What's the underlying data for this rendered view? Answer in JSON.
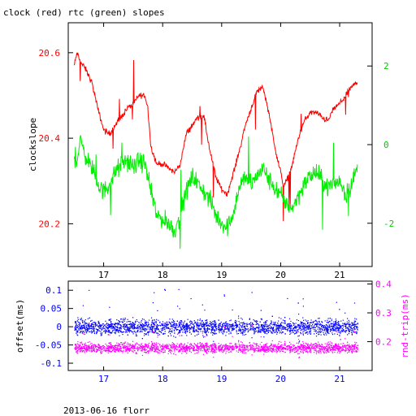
{
  "page": {
    "title": "clock (red) rtc (green) slopes",
    "footer": "2013-06-16 florr"
  },
  "chart_data": [
    {
      "type": "line",
      "title": "clock (red) rtc (green) slopes",
      "xlabel": "",
      "ylabel": "clockslope",
      "xlim": [
        16.4,
        21.55
      ],
      "ylim": [
        20.1,
        20.67
      ],
      "y2lim": [
        -3.1,
        3.1
      ],
      "x_ticks": [
        17,
        18,
        19,
        20,
        21
      ],
      "x_tick_labels": [
        "17",
        "18",
        "19",
        "20",
        "21"
      ],
      "y_ticks": [
        20.2,
        20.4,
        20.6
      ],
      "y_tick_labels": [
        "20.2",
        "20.4",
        "20.6"
      ],
      "y2_ticks": [
        -2,
        0,
        2
      ],
      "y2_tick_labels": [
        "-2",
        "0",
        "2"
      ],
      "colors": {
        "clock": "#ff0000",
        "rtc": "#00ee00",
        "axis": "#000000"
      },
      "series": [
        {
          "key": "clock",
          "axis": "left",
          "x": [
            16.5,
            16.55,
            16.6,
            16.7,
            16.8,
            16.9,
            17.0,
            17.1,
            17.2,
            17.3,
            17.4,
            17.5,
            17.6,
            17.7,
            17.75,
            17.8,
            17.9,
            18.0,
            18.1,
            18.2,
            18.3,
            18.4,
            18.5,
            18.6,
            18.7,
            18.8,
            18.9,
            19.0,
            19.1,
            19.2,
            19.3,
            19.4,
            19.5,
            19.6,
            19.7,
            19.8,
            19.9,
            20.0,
            20.05,
            20.1,
            20.2,
            20.3,
            20.4,
            20.5,
            20.6,
            20.7,
            20.8,
            20.9,
            21.0,
            21.1,
            21.2,
            21.3
          ],
          "y": [
            20.57,
            20.6,
            20.58,
            20.56,
            20.53,
            20.47,
            20.42,
            20.41,
            20.43,
            20.45,
            20.47,
            20.48,
            20.5,
            20.5,
            20.47,
            20.38,
            20.34,
            20.34,
            20.33,
            20.32,
            20.34,
            20.41,
            20.43,
            20.45,
            20.45,
            20.37,
            20.31,
            20.28,
            20.27,
            20.32,
            20.37,
            20.43,
            20.47,
            20.51,
            20.52,
            20.46,
            20.38,
            20.32,
            20.29,
            20.3,
            20.34,
            20.4,
            20.44,
            20.46,
            20.46,
            20.45,
            20.44,
            20.47,
            20.48,
            20.5,
            20.52,
            20.53
          ]
        },
        {
          "key": "rtc",
          "axis": "right",
          "x": [
            16.5,
            16.55,
            16.6,
            16.7,
            16.8,
            16.9,
            17.0,
            17.1,
            17.2,
            17.3,
            17.4,
            17.5,
            17.6,
            17.7,
            17.8,
            17.9,
            18.0,
            18.1,
            18.2,
            18.3,
            18.4,
            18.5,
            18.6,
            18.7,
            18.8,
            18.9,
            19.0,
            19.1,
            19.2,
            19.3,
            19.4,
            19.5,
            19.6,
            19.7,
            19.8,
            19.9,
            20.0,
            20.1,
            20.2,
            20.3,
            20.4,
            20.5,
            20.6,
            20.7,
            20.8,
            20.9,
            21.0,
            21.1,
            21.2,
            21.3
          ],
          "y": [
            -0.3,
            -0.4,
            0.1,
            -0.3,
            -0.6,
            -1.0,
            -1.2,
            -1.0,
            -0.7,
            -0.5,
            -0.4,
            -0.6,
            -0.4,
            -0.5,
            -1.2,
            -1.8,
            -1.9,
            -2.0,
            -2.2,
            -1.8,
            -1.2,
            -0.8,
            -1.0,
            -1.2,
            -1.4,
            -1.8,
            -2.0,
            -2.1,
            -1.7,
            -1.1,
            -0.8,
            -1.0,
            -0.8,
            -0.6,
            -0.9,
            -1.1,
            -1.3,
            -1.5,
            -1.6,
            -1.3,
            -1.0,
            -0.8,
            -0.7,
            -0.9,
            -1.1,
            -1.0,
            -0.9,
            -1.3,
            -1.0,
            -0.6
          ]
        }
      ]
    },
    {
      "type": "scatter",
      "xlabel": "",
      "ylabel": "offset(ms)",
      "y2label": "rnd-trip(ms)",
      "xlim": [
        16.4,
        21.55
      ],
      "ylim": [
        -0.12,
        0.125
      ],
      "y2lim": [
        0.1,
        0.41
      ],
      "x_ticks": [
        17,
        18,
        19,
        20,
        21
      ],
      "x_tick_labels": [
        "17",
        "18",
        "19",
        "20",
        "21"
      ],
      "y_ticks": [
        -0.1,
        -0.05,
        0,
        0.05,
        0.1
      ],
      "y_tick_labels": [
        "-0.1",
        "-0.05",
        "0",
        "0.05",
        "0.1"
      ],
      "y2_ticks": [
        0.2,
        0.3,
        0.4
      ],
      "y2_tick_labels": [
        "0.2",
        "0.3",
        "0.4"
      ],
      "colors": {
        "offset": "#0000ff",
        "rndtrip": "#ff00ff",
        "axis": "#000000"
      },
      "series": [
        {
          "key": "offset",
          "axis": "left",
          "x_range": [
            16.5,
            21.3
          ],
          "center": 0.0,
          "spread": 0.03
        },
        {
          "key": "rndtrip",
          "axis": "right",
          "x_range": [
            16.5,
            21.3
          ],
          "center": 0.18,
          "spread": 0.025
        }
      ]
    }
  ]
}
